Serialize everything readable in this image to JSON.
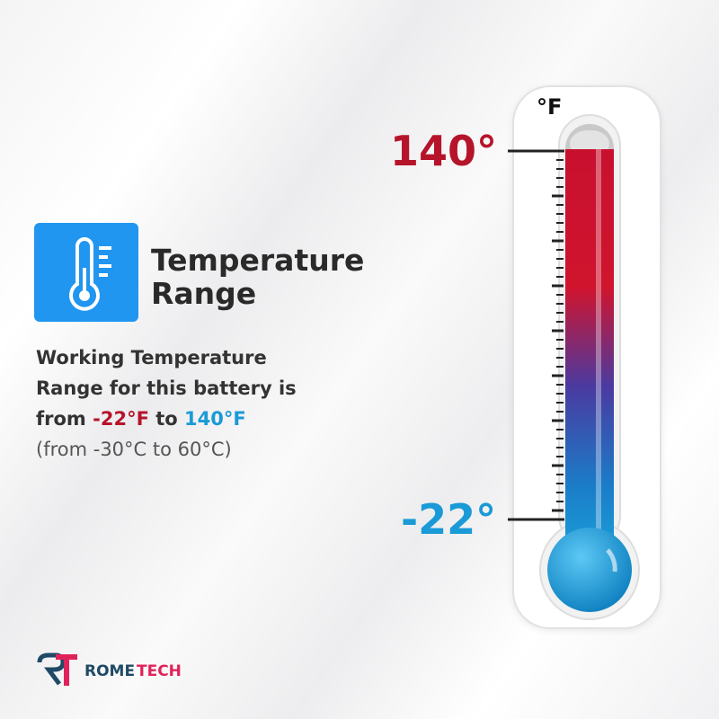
{
  "heading": {
    "line1": "Temperature",
    "line2": "Range"
  },
  "body": {
    "line1": "Working Temperature",
    "line2": "Range for this battery is",
    "line3_prefix": "from ",
    "low_f": "-22°F",
    "line3_mid": " to ",
    "high_f": "140°F",
    "line4": "(from -30°C to 60°C)"
  },
  "thermometer": {
    "unit": "°F",
    "max_label": "140°",
    "min_label": "-22°",
    "fill_fraction": 1.0
  },
  "colors": {
    "red": "#b5142b",
    "blue": "#1a9ad6",
    "icon_bg": "#2196f0"
  },
  "brand": {
    "logo_letters": "RT",
    "name_part1": "ROME",
    "name_part2": "TECH"
  },
  "icons": {
    "heading_icon": "thermometer-icon"
  }
}
